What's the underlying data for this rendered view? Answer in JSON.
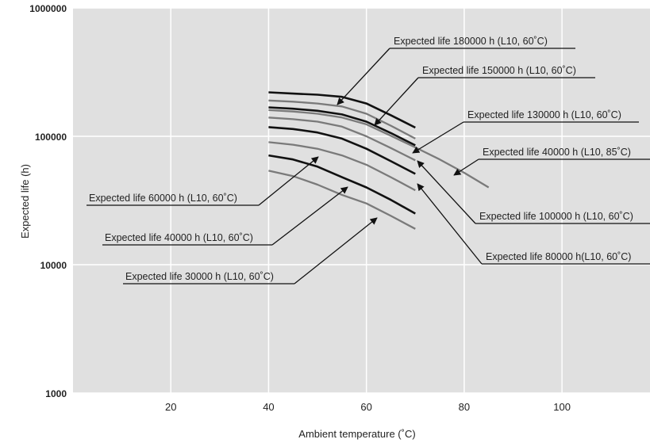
{
  "chart_data": {
    "type": "line",
    "title": "",
    "xlabel": "Ambient temperature (˚C)",
    "ylabel": "Expected life (h)",
    "xlim": [
      0,
      118
    ],
    "ylim": [
      1000,
      1000000
    ],
    "yscale": "log",
    "grid": true,
    "x_ticks": [
      "20",
      "40",
      "60",
      "80",
      "100"
    ],
    "y_ticks": [
      "1000",
      "10000",
      "100000",
      "1000000"
    ],
    "series": [
      {
        "name": "Expected life 180000 h (L10, 60˚C)",
        "style": "black",
        "points": [
          [
            40,
            220000
          ],
          [
            45,
            215000
          ],
          [
            50,
            211000
          ],
          [
            55,
            203000
          ],
          [
            60,
            180000
          ],
          [
            65,
            146000
          ],
          [
            70,
            117000
          ]
        ]
      },
      {
        "name": "Expected life 150000 h (L10, 60˚C)",
        "style": "gray",
        "points": [
          [
            40,
            190000
          ],
          [
            45,
            186000
          ],
          [
            50,
            180000
          ],
          [
            55,
            171000
          ],
          [
            60,
            150000
          ],
          [
            65,
            121000
          ],
          [
            70,
            96000
          ]
        ]
      },
      {
        "name": "Expected life 130000 h (L10, 60˚C)",
        "style": "black",
        "points": [
          [
            40,
            168000
          ],
          [
            45,
            164000
          ],
          [
            50,
            158000
          ],
          [
            55,
            148000
          ],
          [
            60,
            130000
          ],
          [
            65,
            106000
          ],
          [
            70,
            85000
          ]
        ]
      },
      {
        "name": "Expected life 100000 h (L10, 60˚C)",
        "style": "gray",
        "points": [
          [
            40,
            140000
          ],
          [
            45,
            136000
          ],
          [
            50,
            130000
          ],
          [
            55,
            119000
          ],
          [
            60,
            100000
          ],
          [
            65,
            81000
          ],
          [
            70,
            65000
          ]
        ]
      },
      {
        "name": "Expected life 40000 h (L10, 85˚C)",
        "style": "gray",
        "points": [
          [
            40,
            160000
          ],
          [
            45,
            156000
          ],
          [
            50,
            150000
          ],
          [
            55,
            140000
          ],
          [
            60,
            124000
          ],
          [
            65,
            101000
          ],
          [
            70,
            82000
          ],
          [
            75,
            66000
          ],
          [
            80,
            52000
          ],
          [
            85,
            40000
          ]
        ]
      },
      {
        "name": "Expected life 80000 h(L10, 60˚C)",
        "style": "black",
        "points": [
          [
            40,
            118000
          ],
          [
            45,
            114000
          ],
          [
            50,
            107000
          ],
          [
            55,
            96000
          ],
          [
            60,
            80000
          ],
          [
            65,
            64000
          ],
          [
            70,
            51000
          ]
        ]
      },
      {
        "name": "Expected life 60000 h (L10, 60˚C)",
        "style": "gray",
        "points": [
          [
            40,
            90000
          ],
          [
            45,
            86000
          ],
          [
            50,
            80000
          ],
          [
            55,
            71000
          ],
          [
            60,
            60000
          ],
          [
            65,
            48000
          ],
          [
            70,
            38000
          ]
        ]
      },
      {
        "name": "Expected life 40000 h (L10, 60˚C)",
        "style": "black",
        "points": [
          [
            40,
            71000
          ],
          [
            45,
            66000
          ],
          [
            50,
            58000
          ],
          [
            55,
            48000
          ],
          [
            60,
            40000
          ],
          [
            65,
            32000
          ],
          [
            70,
            25000
          ]
        ]
      },
      {
        "name": "Expected life 30000 h (L10, 60˚C)",
        "style": "gray",
        "points": [
          [
            40,
            54000
          ],
          [
            45,
            49000
          ],
          [
            50,
            42000
          ],
          [
            55,
            35000
          ],
          [
            60,
            30000
          ],
          [
            65,
            24000
          ],
          [
            70,
            19000
          ]
        ]
      }
    ],
    "annotations": [
      {
        "text": "Expected life 180000 h (L10, 60˚C)",
        "target_series": 0,
        "label_side": "top-right"
      },
      {
        "text": "Expected life 150000 h (L10, 60˚C)",
        "target_series": 1,
        "label_side": "top-right"
      },
      {
        "text": "Expected life 130000 h (L10, 60˚C)",
        "target_series": 2,
        "label_side": "right"
      },
      {
        "text": "Expected life 40000 h (L10, 85˚C)",
        "target_series": 4,
        "label_side": "right"
      },
      {
        "text": "Expected life 100000 h (L10, 60˚C)",
        "target_series": 3,
        "label_side": "bottom-right"
      },
      {
        "text": "Expected life 80000 h(L10, 60˚C)",
        "target_series": 5,
        "label_side": "bottom-right"
      },
      {
        "text": "Expected life 60000 h (L10, 60˚C)",
        "target_series": 6,
        "label_side": "left"
      },
      {
        "text": "Expected life 40000 h (L10, 60˚C)",
        "target_series": 7,
        "label_side": "left"
      },
      {
        "text": "Expected life 30000 h (L10, 60˚C)",
        "target_series": 8,
        "label_side": "left"
      }
    ],
    "colors": {
      "background": "#e0e0e0",
      "grid": "#ffffff",
      "black_series": "#111111",
      "gray_series": "#7a7a7a"
    }
  }
}
